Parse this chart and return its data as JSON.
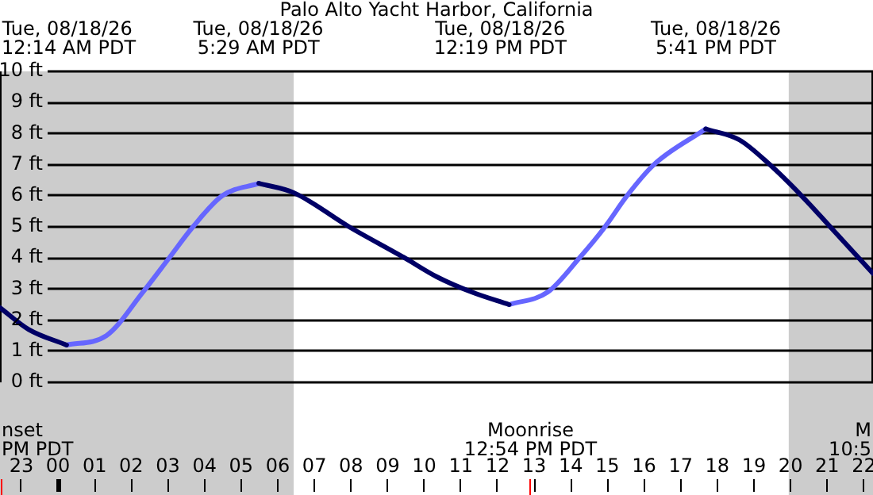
{
  "chart_data": {
    "type": "line",
    "title": "Palo Alto Yacht Harbor, California",
    "xlim": [
      "--08-17T22:25",
      "--08-18T22:15"
    ],
    "ylim": [
      0,
      10
    ],
    "xticks": [
      {
        "value": "--08-17T23:00",
        "label": "23"
      },
      {
        "value": "--08-18T00:00",
        "label": "00"
      },
      {
        "value": "--08-18T01:00",
        "label": "01"
      },
      {
        "value": "--08-18T02:00",
        "label": "02"
      },
      {
        "value": "--08-18T03:00",
        "label": "03"
      },
      {
        "value": "--08-18T04:00",
        "label": "04"
      },
      {
        "value": "--08-18T05:00",
        "label": "05"
      },
      {
        "value": "--08-18T06:00",
        "label": "06"
      },
      {
        "value": "--08-18T07:00",
        "label": "07"
      },
      {
        "value": "--08-18T08:00",
        "label": "08"
      },
      {
        "value": "--08-18T09:00",
        "label": "09"
      },
      {
        "value": "--08-18T10:00",
        "label": "10"
      },
      {
        "value": "--08-18T11:00",
        "label": "11"
      },
      {
        "value": "--08-18T12:00",
        "label": "12"
      },
      {
        "value": "--08-18T13:00",
        "label": "13"
      },
      {
        "value": "--08-18T14:00",
        "label": "14"
      },
      {
        "value": "--08-18T15:00",
        "label": "15"
      },
      {
        "value": "--08-18T16:00",
        "label": "16"
      },
      {
        "value": "--08-18T17:00",
        "label": "17"
      },
      {
        "value": "--08-18T18:00",
        "label": "18"
      },
      {
        "value": "--08-18T19:00",
        "label": "19"
      },
      {
        "value": "--08-18T20:00",
        "label": "20"
      },
      {
        "value": "--08-18T21:00",
        "label": "21"
      },
      {
        "value": "--08-18T22:00",
        "label": "22"
      }
    ],
    "yticks": [
      {
        "value": 0,
        "label": "0 ft"
      },
      {
        "value": 1,
        "label": "1 ft"
      },
      {
        "value": 2,
        "label": "2 ft"
      },
      {
        "value": 3,
        "label": "3 ft"
      },
      {
        "value": 4,
        "label": "4 ft"
      },
      {
        "value": 5,
        "label": "5 ft"
      },
      {
        "value": 6,
        "label": "6 ft"
      },
      {
        "value": 7,
        "label": "7 ft"
      },
      {
        "value": 8,
        "label": "8 ft"
      },
      {
        "value": 9,
        "label": "9 ft"
      },
      {
        "value": 10,
        "label": "10 ft"
      }
    ],
    "series": [
      {
        "color": "#000066",
        "x": [
          "--08-17T22:25",
          "--08-17T23:12",
          "--08-18T00:14",
          "--08-18T03:00",
          "--08-18T05:29",
          "--08-18T06:26",
          "--08-18T07:57",
          "--08-18T09:28",
          "--08-18T10:20",
          "--08-18T11:18",
          "--08-18T12:19",
          "--08-18T15:00",
          "--08-18T17:41",
          "--08-18T18:36",
          "--08-18T19:26",
          "--08-18T20:18",
          "--08-18T21:05",
          "--08-18T22:15"
        ],
        "values": [
          2.4,
          1.7,
          1.2,
          null,
          6.4,
          6.1,
          5.0,
          4.0,
          3.4,
          2.9,
          2.5,
          null,
          8.15,
          7.8,
          7.0,
          6.0,
          5.0,
          3.5
        ]
      },
      {
        "color": "#6666ff",
        "x": [
          "--08-18T00:14",
          "--08-18T01:19",
          "--08-18T02:19",
          "--08-18T03:02",
          "--08-18T03:41",
          "--08-18T04:29",
          "--08-18T05:29",
          "--08-18T09:00",
          "--08-18T12:19",
          "--08-18T13:22",
          "--08-18T14:14",
          "--08-18T14:56",
          "--08-18T15:32",
          "--08-18T16:16",
          "--08-18T17:41"
        ],
        "values": [
          1.2,
          1.5,
          2.9,
          4.0,
          5.0,
          6.0,
          6.4,
          null,
          2.5,
          2.9,
          4.0,
          5.0,
          6.0,
          7.0,
          8.15
        ]
      }
    ],
    "bands": [
      {
        "axis": "x",
        "from": "--08-17T22:25",
        "to": "--08-18T06:26",
        "color": "#cccccc"
      },
      {
        "axis": "x",
        "from": "--08-18T19:57",
        "to": "--08-18T22:15",
        "color": "#cccccc"
      }
    ],
    "ref_lines": [
      {
        "axis": "x",
        "value": "--08-17T22:27",
        "label": "nset\nPM PDT",
        "color": "#ff0000"
      },
      {
        "axis": "x",
        "value": "--08-18T12:54",
        "label": "Moonrise\n12:54 PM PDT",
        "color": "#ff0000"
      }
    ],
    "annotations": [
      "Tue, 08/18/26\n12:14 AM PDT",
      "Tue, 08/18/26\n5:29 AM PDT",
      "Tue, 08/18/26\n12:19 PM PDT",
      "Tue, 08/18/26\n5:41 PM PDT",
      "M\n10:5"
    ],
    "grid": "y",
    "legend": false,
    "marker": "none",
    "line_style": "solid"
  }
}
